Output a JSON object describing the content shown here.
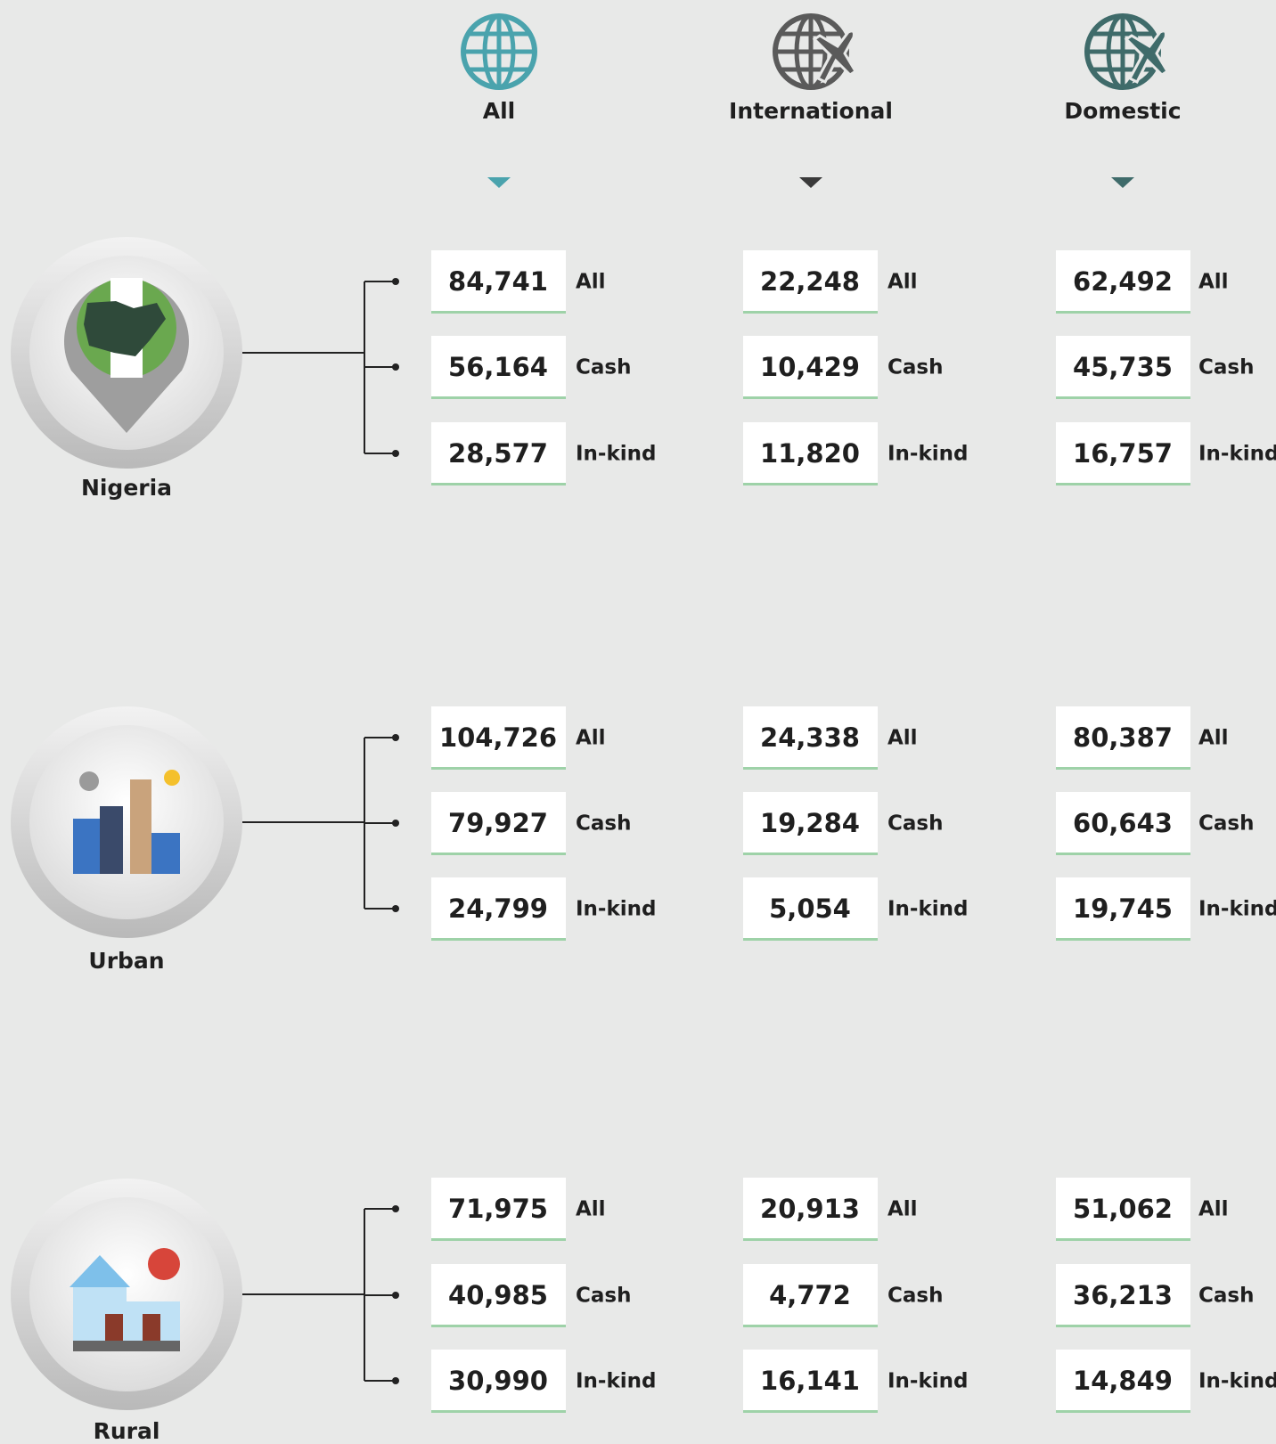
{
  "columns": [
    "All",
    "International",
    "Domestic"
  ],
  "groups": [
    {
      "name": "Nigeria",
      "rows": [
        {
          "label": "All",
          "values": [
            "84,741",
            "22,248",
            "62,492"
          ]
        },
        {
          "label": "Cash",
          "values": [
            "56,164",
            "10,429",
            "45,735"
          ]
        },
        {
          "label": "In-kind",
          "values": [
            "28,577",
            "11,820",
            "16,757"
          ]
        }
      ]
    },
    {
      "name": "Urban",
      "rows": [
        {
          "label": "All",
          "values": [
            "104,726",
            "24,338",
            "80,387"
          ]
        },
        {
          "label": "Cash",
          "values": [
            "79,927",
            "19,284",
            "60,643"
          ]
        },
        {
          "label": "In-kind",
          "values": [
            "24,799",
            "5,054",
            "19,745"
          ]
        }
      ]
    },
    {
      "name": "Rural",
      "rows": [
        {
          "label": "All",
          "values": [
            "71,975",
            "20,913",
            "51,062"
          ]
        },
        {
          "label": "Cash",
          "values": [
            "40,985",
            "4,772",
            "36,213"
          ]
        },
        {
          "label": "In-kind",
          "values": [
            "30,990",
            "16,141",
            "14,849"
          ]
        }
      ]
    }
  ]
}
